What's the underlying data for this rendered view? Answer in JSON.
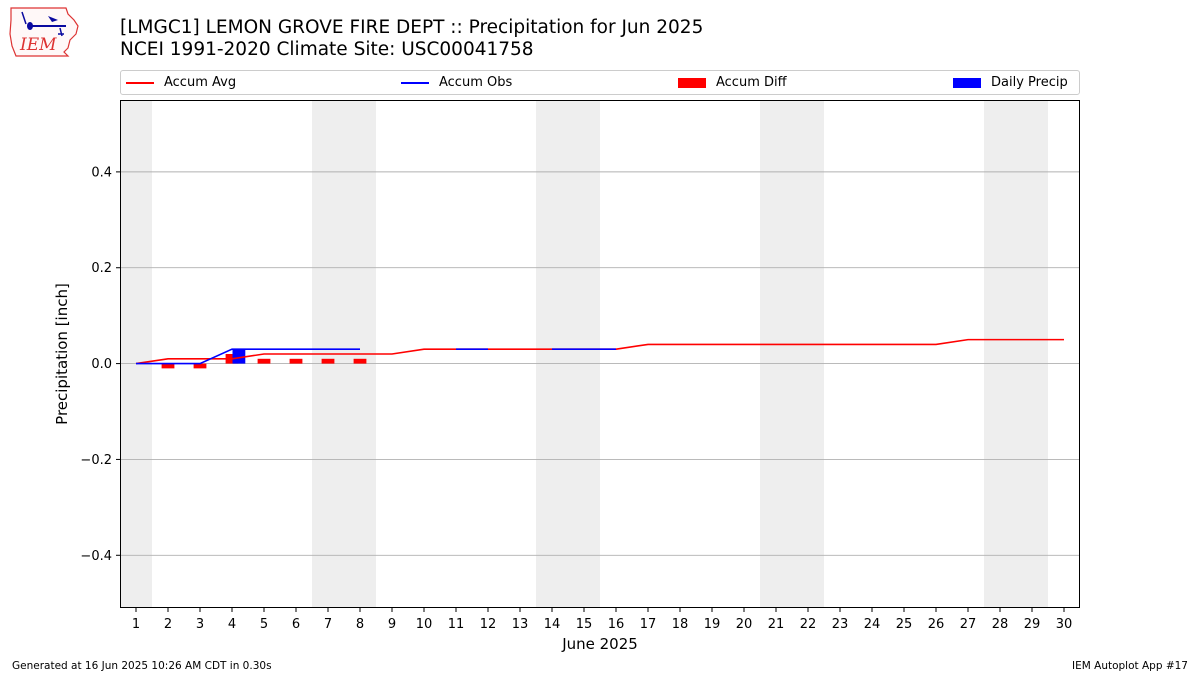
{
  "title_line1": "[LMGC1] LEMON GROVE FIRE DEPT :: Precipitation for Jun 2025",
  "title_line2": "NCEI 1991-2020 Climate Site: USC00041758",
  "logo_text": "IEM",
  "footer_left": "Generated at 16 Jun 2025 10:26 AM CDT in 0.30s",
  "footer_right": "IEM Autoplot App #17",
  "colors": {
    "avg": "#ff0000",
    "obs": "#0000ff",
    "diff": "#ff0000",
    "daily": "#0000ff",
    "weekend": "#eeeeee",
    "grid": "#b0b0b0"
  },
  "legend": [
    {
      "label": "Accum Avg",
      "kind": "line",
      "color": "#ff0000"
    },
    {
      "label": "Accum Obs",
      "kind": "line",
      "color": "#0000ff"
    },
    {
      "label": "Accum Diff",
      "kind": "bar",
      "color": "#ff0000"
    },
    {
      "label": "Daily Precip",
      "kind": "bar",
      "color": "#0000ff"
    }
  ],
  "chart_data": {
    "type": "line",
    "xlabel": "June 2025",
    "ylabel": "Precipitation [inch]",
    "xlim": [
      0.5,
      30.5
    ],
    "ylim": [
      -0.51,
      0.55
    ],
    "yticks": [
      -0.4,
      -0.2,
      0.0,
      0.2,
      0.4
    ],
    "ytick_labels": [
      "−0.4",
      "−0.2",
      "0.0",
      "0.2",
      "0.4"
    ],
    "grid": "y",
    "legend_position": "top",
    "x": [
      1,
      2,
      3,
      4,
      5,
      6,
      7,
      8,
      9,
      10,
      11,
      12,
      13,
      14,
      15,
      16,
      17,
      18,
      19,
      20,
      21,
      22,
      23,
      24,
      25,
      26,
      27,
      28,
      29,
      30
    ],
    "weekend_bands": [
      [
        0.5,
        1.5
      ],
      [
        6.5,
        8.5
      ],
      [
        13.5,
        15.5
      ],
      [
        20.5,
        22.5
      ],
      [
        27.5,
        29.5
      ]
    ],
    "series": [
      {
        "name": "Accum Avg",
        "type": "line",
        "color": "#ff0000",
        "values": [
          0.0,
          0.01,
          0.01,
          0.01,
          0.02,
          0.02,
          0.02,
          0.02,
          0.02,
          0.03,
          0.03,
          0.03,
          0.03,
          0.03,
          0.03,
          0.03,
          0.04,
          0.04,
          0.04,
          0.04,
          0.04,
          0.04,
          0.04,
          0.04,
          0.04,
          0.04,
          0.05,
          0.05,
          0.05,
          0.05
        ]
      },
      {
        "name": "Accum Obs",
        "type": "line",
        "color": "#0000ff",
        "x": [
          1,
          2,
          3,
          4,
          5,
          6,
          7,
          8
        ],
        "values": [
          0.0,
          0.0,
          0.0,
          0.03,
          0.03,
          0.03,
          0.03,
          0.03
        ]
      },
      {
        "name": "Accum Diff",
        "type": "bar",
        "color": "#ff0000",
        "x": [
          2,
          3,
          4,
          5,
          6,
          7,
          8
        ],
        "values": [
          -0.01,
          -0.01,
          0.02,
          0.01,
          0.01,
          0.01,
          0.01
        ]
      },
      {
        "name": "Daily Precip",
        "type": "bar",
        "color": "#0000ff",
        "x": [
          4
        ],
        "values": [
          0.03
        ]
      }
    ],
    "extra_segments": [
      {
        "color": "#0000ff",
        "x": [
          11,
          12
        ],
        "values": [
          0.03,
          0.03
        ]
      },
      {
        "color": "#0000ff",
        "x": [
          14,
          15,
          16
        ],
        "values": [
          0.03,
          0.03,
          0.03
        ]
      }
    ]
  }
}
